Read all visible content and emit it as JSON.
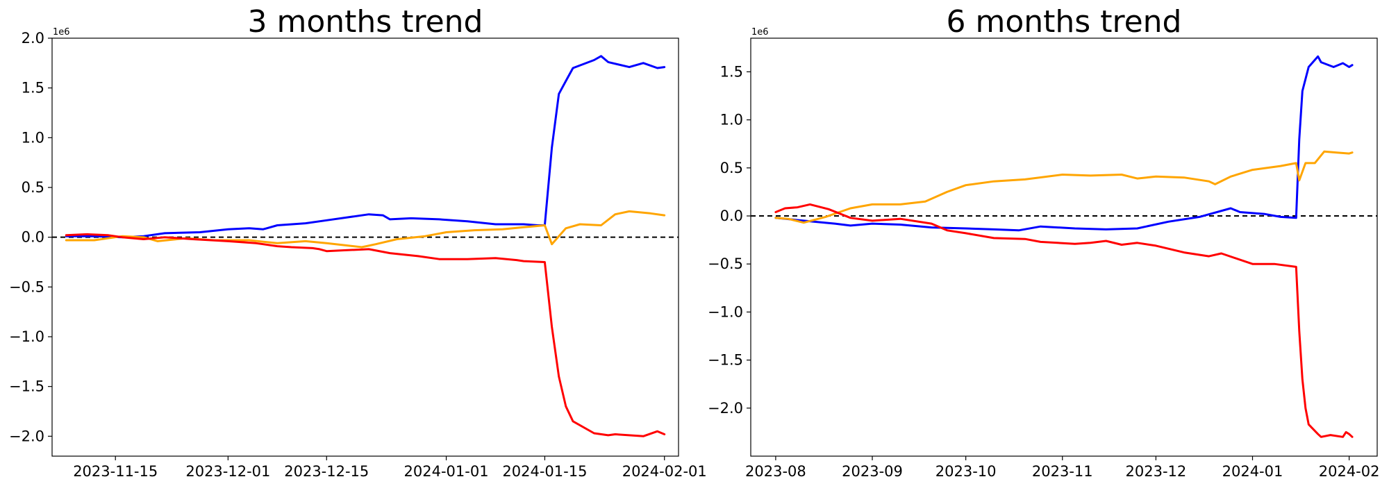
{
  "chart_data": [
    {
      "type": "line",
      "title": "3 months trend",
      "xlabel": "",
      "ylabel": "",
      "y_offset_label": "1e6",
      "x_date_range": [
        "2023-11-06",
        "2024-02-03"
      ],
      "x_ticks": [
        "2023-11-15",
        "2023-12-01",
        "2023-12-15",
        "2024-01-01",
        "2024-01-15",
        "2024-02-01"
      ],
      "ylim": [
        -2.2,
        2.0
      ],
      "y_ticks": [
        2.0,
        1.5,
        1.0,
        0.5,
        0.0,
        -0.5,
        -1.0,
        -1.5,
        -2.0
      ],
      "y_tick_labels": [
        "2.0",
        "1.5",
        "1.0",
        "0.5",
        "0.0",
        "−0.5",
        "−1.0",
        "−1.5",
        "−2.0"
      ],
      "reference_line": {
        "y": 0,
        "style": "dashed",
        "color": "#000000"
      },
      "grid": false,
      "legend": "none",
      "series": [
        {
          "color": "#0000ff",
          "points": [
            [
              "2023-11-08",
              0.01
            ],
            [
              "2023-11-12",
              0.01
            ],
            [
              "2023-11-16",
              0.0
            ],
            [
              "2023-11-19",
              0.01
            ],
            [
              "2023-11-22",
              0.04
            ],
            [
              "2023-11-27",
              0.05
            ],
            [
              "2023-12-01",
              0.08
            ],
            [
              "2023-12-04",
              0.09
            ],
            [
              "2023-12-06",
              0.08
            ],
            [
              "2023-12-08",
              0.12
            ],
            [
              "2023-12-12",
              0.14
            ],
            [
              "2023-12-15",
              0.17
            ],
            [
              "2023-12-18",
              0.2
            ],
            [
              "2023-12-21",
              0.23
            ],
            [
              "2023-12-23",
              0.22
            ],
            [
              "2023-12-24",
              0.18
            ],
            [
              "2023-12-27",
              0.19
            ],
            [
              "2023-12-31",
              0.18
            ],
            [
              "2024-01-04",
              0.16
            ],
            [
              "2024-01-08",
              0.13
            ],
            [
              "2024-01-12",
              0.13
            ],
            [
              "2024-01-14",
              0.12
            ],
            [
              "2024-01-15",
              0.12
            ],
            [
              "2024-01-16",
              0.9
            ],
            [
              "2024-01-17",
              1.44
            ],
            [
              "2024-01-18",
              1.57
            ],
            [
              "2024-01-19",
              1.7
            ],
            [
              "2024-01-22",
              1.78
            ],
            [
              "2024-01-23",
              1.82
            ],
            [
              "2024-01-24",
              1.76
            ],
            [
              "2024-01-27",
              1.71
            ],
            [
              "2024-01-29",
              1.75
            ],
            [
              "2024-01-31",
              1.7
            ],
            [
              "2024-02-01",
              1.71
            ]
          ]
        },
        {
          "color": "#ffa500",
          "points": [
            [
              "2023-11-08",
              -0.03
            ],
            [
              "2023-11-12",
              -0.03
            ],
            [
              "2023-11-16",
              0.01
            ],
            [
              "2023-11-19",
              0.0
            ],
            [
              "2023-11-21",
              -0.04
            ],
            [
              "2023-11-25",
              -0.01
            ],
            [
              "2023-11-29",
              -0.03
            ],
            [
              "2023-12-04",
              -0.03
            ],
            [
              "2023-12-08",
              -0.06
            ],
            [
              "2023-12-12",
              -0.04
            ],
            [
              "2023-12-15",
              -0.06
            ],
            [
              "2023-12-20",
              -0.1
            ],
            [
              "2023-12-22",
              -0.07
            ],
            [
              "2023-12-25",
              -0.02
            ],
            [
              "2023-12-29",
              0.01
            ],
            [
              "2024-01-01",
              0.05
            ],
            [
              "2024-01-05",
              0.07
            ],
            [
              "2024-01-09",
              0.08
            ],
            [
              "2024-01-12",
              0.1
            ],
            [
              "2024-01-15",
              0.12
            ],
            [
              "2024-01-16",
              -0.07
            ],
            [
              "2024-01-18",
              0.09
            ],
            [
              "2024-01-20",
              0.13
            ],
            [
              "2024-01-23",
              0.12
            ],
            [
              "2024-01-25",
              0.23
            ],
            [
              "2024-01-27",
              0.26
            ],
            [
              "2024-01-30",
              0.24
            ],
            [
              "2024-02-01",
              0.22
            ]
          ]
        },
        {
          "color": "#ff0000",
          "points": [
            [
              "2023-11-08",
              0.02
            ],
            [
              "2023-11-11",
              0.03
            ],
            [
              "2023-11-14",
              0.02
            ],
            [
              "2023-11-16",
              0.0
            ],
            [
              "2023-11-19",
              -0.02
            ],
            [
              "2023-11-22",
              0.0
            ],
            [
              "2023-11-26",
              -0.02
            ],
            [
              "2023-12-01",
              -0.04
            ],
            [
              "2023-12-05",
              -0.06
            ],
            [
              "2023-12-08",
              -0.09
            ],
            [
              "2023-12-10",
              -0.1
            ],
            [
              "2023-12-13",
              -0.11
            ],
            [
              "2023-12-14",
              -0.12
            ],
            [
              "2023-12-15",
              -0.14
            ],
            [
              "2023-12-18",
              -0.13
            ],
            [
              "2023-12-21",
              -0.12
            ],
            [
              "2023-12-24",
              -0.16
            ],
            [
              "2023-12-28",
              -0.19
            ],
            [
              "2023-12-31",
              -0.22
            ],
            [
              "2024-01-04",
              -0.22
            ],
            [
              "2024-01-08",
              -0.21
            ],
            [
              "2024-01-11",
              -0.23
            ],
            [
              "2024-01-12",
              -0.24
            ],
            [
              "2024-01-15",
              -0.25
            ],
            [
              "2024-01-16",
              -0.9
            ],
            [
              "2024-01-17",
              -1.4
            ],
            [
              "2024-01-18",
              -1.7
            ],
            [
              "2024-01-19",
              -1.85
            ],
            [
              "2024-01-22",
              -1.97
            ],
            [
              "2024-01-24",
              -1.99
            ],
            [
              "2024-01-25",
              -1.98
            ],
            [
              "2024-01-29",
              -2.0
            ],
            [
              "2024-01-31",
              -1.95
            ],
            [
              "2024-02-01",
              -1.98
            ]
          ]
        }
      ]
    },
    {
      "type": "line",
      "title": "6 months trend",
      "xlabel": "",
      "ylabel": "",
      "y_offset_label": "1e6",
      "x_date_range": [
        "2023-07-24",
        "2024-02-10"
      ],
      "x_ticks": [
        "2023-08",
        "2023-09",
        "2023-10",
        "2023-11",
        "2023-12",
        "2024-01",
        "2024-02"
      ],
      "ylim": [
        -2.5,
        1.85
      ],
      "y_ticks": [
        1.5,
        1.0,
        0.5,
        0.0,
        -0.5,
        -1.0,
        -1.5,
        -2.0
      ],
      "y_tick_labels": [
        "1.5",
        "1.0",
        "0.5",
        "0.0",
        "−0.5",
        "−1.0",
        "−1.5",
        "−2.0"
      ],
      "reference_line": {
        "y": 0,
        "style": "dashed",
        "color": "#000000"
      },
      "grid": false,
      "legend": "none",
      "series": [
        {
          "color": "#0000ff",
          "points": [
            [
              "2023-08-01",
              -0.02
            ],
            [
              "2023-08-10",
              -0.05
            ],
            [
              "2023-08-20",
              -0.08
            ],
            [
              "2023-08-25",
              -0.1
            ],
            [
              "2023-09-01",
              -0.08
            ],
            [
              "2023-09-10",
              -0.09
            ],
            [
              "2023-09-20",
              -0.12
            ],
            [
              "2023-10-01",
              -0.13
            ],
            [
              "2023-10-10",
              -0.14
            ],
            [
              "2023-10-18",
              -0.15
            ],
            [
              "2023-10-25",
              -0.11
            ],
            [
              "2023-11-05",
              -0.13
            ],
            [
              "2023-11-15",
              -0.14
            ],
            [
              "2023-11-25",
              -0.13
            ],
            [
              "2023-12-05",
              -0.06
            ],
            [
              "2023-12-15",
              -0.01
            ],
            [
              "2023-12-25",
              0.08
            ],
            [
              "2023-12-28",
              0.04
            ],
            [
              "2024-01-05",
              0.02
            ],
            [
              "2024-01-10",
              -0.01
            ],
            [
              "2024-01-15",
              -0.02
            ],
            [
              "2024-01-16",
              0.8
            ],
            [
              "2024-01-17",
              1.3
            ],
            [
              "2024-01-19",
              1.55
            ],
            [
              "2024-01-22",
              1.66
            ],
            [
              "2024-01-23",
              1.6
            ],
            [
              "2024-01-27",
              1.55
            ],
            [
              "2024-01-30",
              1.59
            ],
            [
              "2024-02-01",
              1.55
            ],
            [
              "2024-02-02",
              1.57
            ]
          ]
        },
        {
          "color": "#ffa500",
          "points": [
            [
              "2023-08-01",
              -0.02
            ],
            [
              "2023-08-05",
              -0.03
            ],
            [
              "2023-08-10",
              -0.07
            ],
            [
              "2023-08-17",
              -0.01
            ],
            [
              "2023-08-25",
              0.08
            ],
            [
              "2023-09-01",
              0.12
            ],
            [
              "2023-09-10",
              0.12
            ],
            [
              "2023-09-18",
              0.15
            ],
            [
              "2023-09-25",
              0.25
            ],
            [
              "2023-10-01",
              0.32
            ],
            [
              "2023-10-10",
              0.36
            ],
            [
              "2023-10-20",
              0.38
            ],
            [
              "2023-11-01",
              0.43
            ],
            [
              "2023-11-10",
              0.42
            ],
            [
              "2023-11-20",
              0.43
            ],
            [
              "2023-11-25",
              0.39
            ],
            [
              "2023-12-01",
              0.41
            ],
            [
              "2023-12-10",
              0.4
            ],
            [
              "2023-12-18",
              0.36
            ],
            [
              "2023-12-20",
              0.33
            ],
            [
              "2023-12-25",
              0.41
            ],
            [
              "2024-01-01",
              0.48
            ],
            [
              "2024-01-10",
              0.52
            ],
            [
              "2024-01-15",
              0.55
            ],
            [
              "2024-01-16",
              0.37
            ],
            [
              "2024-01-18",
              0.55
            ],
            [
              "2024-01-21",
              0.55
            ],
            [
              "2024-01-24",
              0.67
            ],
            [
              "2024-01-28",
              0.66
            ],
            [
              "2024-02-01",
              0.65
            ],
            [
              "2024-02-02",
              0.66
            ]
          ]
        },
        {
          "color": "#ff0000",
          "points": [
            [
              "2023-08-01",
              0.04
            ],
            [
              "2023-08-04",
              0.08
            ],
            [
              "2023-08-08",
              0.09
            ],
            [
              "2023-08-12",
              0.12
            ],
            [
              "2023-08-18",
              0.07
            ],
            [
              "2023-08-25",
              -0.02
            ],
            [
              "2023-09-01",
              -0.05
            ],
            [
              "2023-09-10",
              -0.03
            ],
            [
              "2023-09-20",
              -0.08
            ],
            [
              "2023-09-25",
              -0.15
            ],
            [
              "2023-10-01",
              -0.18
            ],
            [
              "2023-10-10",
              -0.23
            ],
            [
              "2023-10-20",
              -0.24
            ],
            [
              "2023-10-25",
              -0.27
            ],
            [
              "2023-11-05",
              -0.29
            ],
            [
              "2023-11-10",
              -0.28
            ],
            [
              "2023-11-15",
              -0.26
            ],
            [
              "2023-11-20",
              -0.3
            ],
            [
              "2023-11-25",
              -0.28
            ],
            [
              "2023-12-01",
              -0.31
            ],
            [
              "2023-12-10",
              -0.38
            ],
            [
              "2023-12-18",
              -0.42
            ],
            [
              "2023-12-22",
              -0.39
            ],
            [
              "2024-01-01",
              -0.5
            ],
            [
              "2024-01-08",
              -0.5
            ],
            [
              "2024-01-15",
              -0.53
            ],
            [
              "2024-01-16",
              -1.2
            ],
            [
              "2024-01-17",
              -1.7
            ],
            [
              "2024-01-18",
              -2.0
            ],
            [
              "2024-01-19",
              -2.17
            ],
            [
              "2024-01-22",
              -2.27
            ],
            [
              "2024-01-23",
              -2.3
            ],
            [
              "2024-01-26",
              -2.28
            ],
            [
              "2024-01-30",
              -2.3
            ],
            [
              "2024-01-31",
              -2.25
            ],
            [
              "2024-02-01",
              -2.27
            ],
            [
              "2024-02-02",
              -2.3
            ]
          ]
        }
      ]
    }
  ]
}
